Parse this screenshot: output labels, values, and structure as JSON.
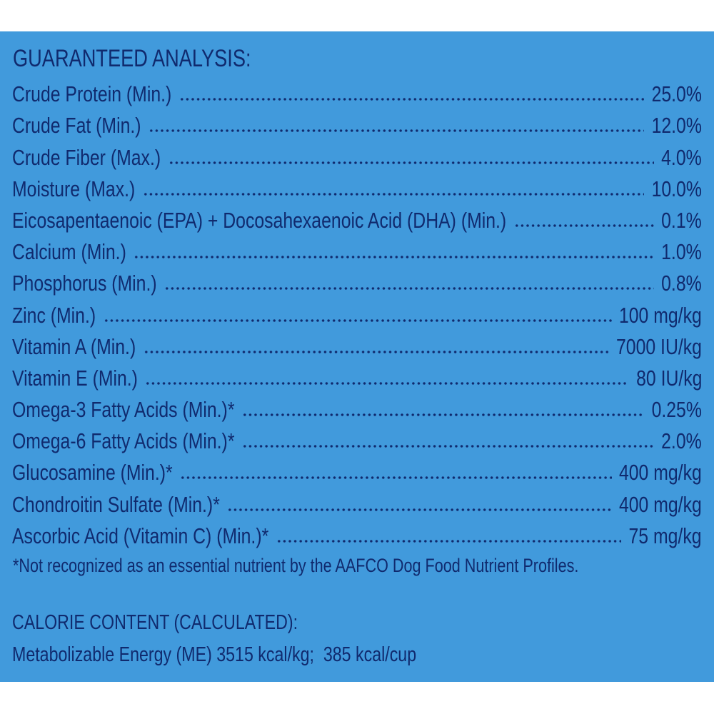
{
  "guaranteed_analysis": {
    "heading": "GUARANTEED ANALYSIS:",
    "rows": [
      {
        "name": "Crude Protein (Min.)",
        "value": "25.0%"
      },
      {
        "name": "Crude Fat (Min.)",
        "value": "12.0%"
      },
      {
        "name": "Crude Fiber (Max.)",
        "value": "4.0%"
      },
      {
        "name": "Moisture (Max.)",
        "value": "10.0%"
      },
      {
        "name": "Eicosapentaenoic (EPA) + Docosahexaenoic Acid (DHA) (Min.)",
        "value": "0.1%"
      },
      {
        "name": "Calcium (Min.)",
        "value": "1.0%"
      },
      {
        "name": "Phosphorus (Min.)",
        "value": "0.8%"
      },
      {
        "name": "Zinc (Min.)",
        "value": "100 mg/kg"
      },
      {
        "name": "Vitamin A (Min.)",
        "value": "7000 IU/kg"
      },
      {
        "name": "Vitamin E (Min.)",
        "value": "80 IU/kg"
      },
      {
        "name": "Omega-3 Fatty Acids (Min.)*",
        "value": "0.25%"
      },
      {
        "name": "Omega-6 Fatty Acids (Min.)*",
        "value": "2.0%"
      },
      {
        "name": "Glucosamine (Min.)*",
        "value": "400 mg/kg"
      },
      {
        "name": "Chondroitin Sulfate (Min.)*",
        "value": "400 mg/kg"
      },
      {
        "name": "Ascorbic Acid (Vitamin C) (Min.)*",
        "value": "75 mg/kg"
      }
    ],
    "footnote": "*Not recognized as an essential nutrient by the AAFCO Dog Food Nutrient Profiles."
  },
  "calorie_content": {
    "heading": "CALORIE CONTENT (CALCULATED):",
    "line": "Metabolizable Energy (ME) 3515 kcal/kg;  385 kcal/cup"
  },
  "colors": {
    "background": "#419adc",
    "text": "#102a6e"
  }
}
